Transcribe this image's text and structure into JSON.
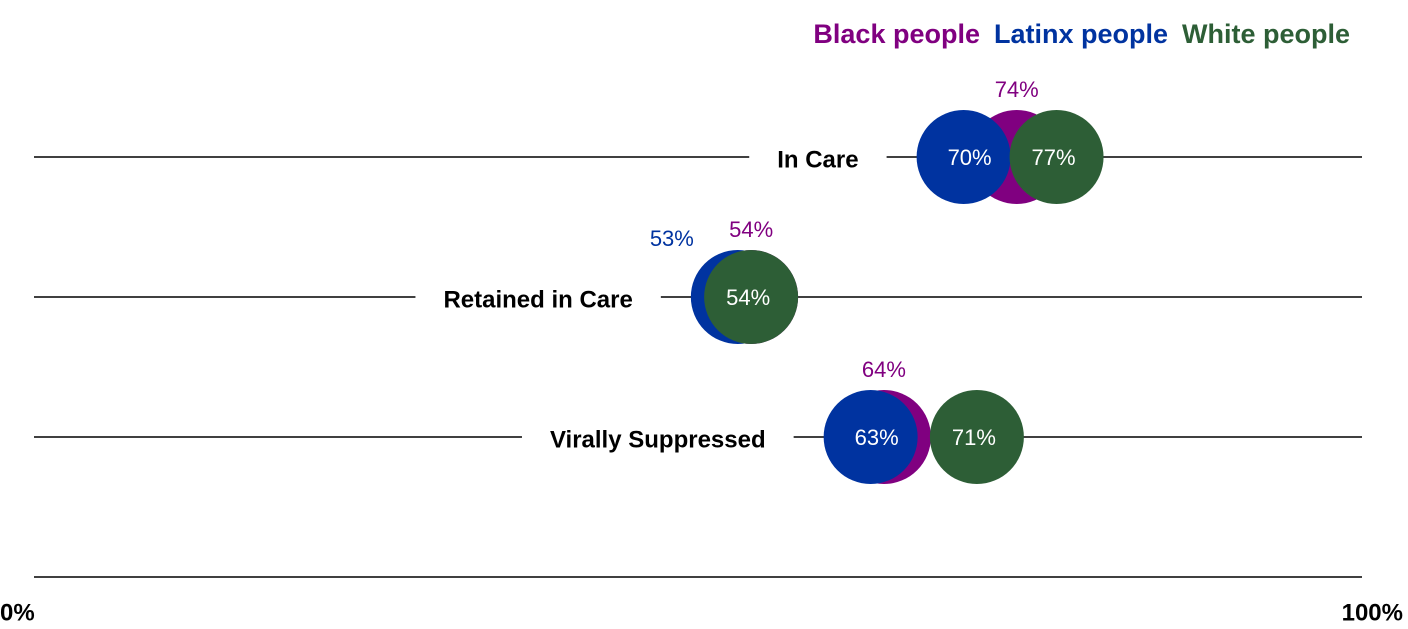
{
  "chart_data": {
    "type": "dot",
    "categories": [
      "In Care",
      "Retained in Care",
      "Virally Suppressed"
    ],
    "series": [
      {
        "name": "Black people",
        "color": "#800080",
        "values": [
          74,
          54,
          64
        ],
        "value_labels": [
          "74%",
          "54%",
          "64%"
        ]
      },
      {
        "name": "Latinx people",
        "color": "#0033a0",
        "values": [
          70,
          53,
          63
        ],
        "value_labels": [
          "70%",
          "53%",
          "63%"
        ]
      },
      {
        "name": "White people",
        "color": "#2d5e36",
        "values": [
          77,
          54,
          71
        ],
        "value_labels": [
          "77%",
          "54%",
          "71%"
        ]
      }
    ],
    "xlim": [
      0,
      100
    ],
    "xticks": [
      {
        "value": 0,
        "label": "0%"
      },
      {
        "value": 100,
        "label": "100%"
      }
    ],
    "legend": "top-right"
  }
}
